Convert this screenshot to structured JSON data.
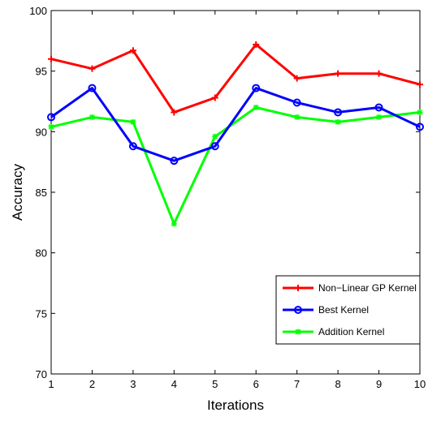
{
  "chart_data": {
    "type": "line",
    "title": "",
    "xlabel": "Iterations",
    "ylabel": "Accuracy",
    "xlim": [
      1,
      10
    ],
    "ylim": [
      70,
      100
    ],
    "x": [
      1,
      2,
      3,
      4,
      5,
      6,
      7,
      8,
      9,
      10
    ],
    "xticks": [
      "1",
      "2",
      "3",
      "4",
      "5",
      "6",
      "7",
      "8",
      "9",
      "10"
    ],
    "yticks": [
      "70",
      "75",
      "80",
      "85",
      "90",
      "95",
      "100"
    ],
    "grid": false,
    "legend": "bottom-right",
    "series": [
      {
        "name": "Non−Linear GP Kernel",
        "color": "#ff0000",
        "marker": "plus",
        "values": [
          96.0,
          95.2,
          96.7,
          91.6,
          92.8,
          97.2,
          94.4,
          94.8,
          94.8,
          93.9
        ]
      },
      {
        "name": "Best Kernel",
        "color": "#0000ff",
        "marker": "circle",
        "values": [
          91.2,
          93.6,
          88.8,
          87.6,
          88.8,
          93.6,
          92.4,
          91.6,
          92.0,
          90.4
        ]
      },
      {
        "name": "Addition Kernel",
        "color": "#00ff00",
        "marker": "star",
        "values": [
          90.4,
          91.2,
          90.8,
          82.4,
          89.6,
          92.0,
          91.2,
          90.8,
          91.2,
          91.6
        ]
      }
    ]
  }
}
